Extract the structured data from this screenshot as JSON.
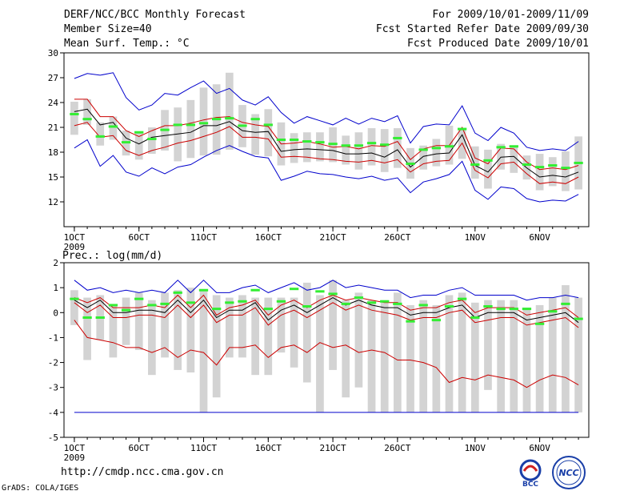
{
  "header": {
    "title": "DERF/NCC/BCC Monthly Forecast",
    "member_size": "Member Size=40",
    "variable": "Mean Surf. Temp.: °C",
    "forecast_period": "For 2009/10/01-2009/11/09",
    "refer_date": "Fcst Started Refer Date 2009/09/30",
    "produced_date": "Fcst Produced Date 2009/10/01"
  },
  "footer": {
    "url": "http://cmdp.ncc.cma.gov.cn",
    "grads": "GrADS: COLA/IGES",
    "logo_bcc": "BCC",
    "logo_ncc": "NCC"
  },
  "colors": {
    "mean": "#000000",
    "inner_band": "#cc0000",
    "outer_band": "#0000cc",
    "box": "#d3d3d3",
    "marker": "#33ee33"
  },
  "chart_data": [
    {
      "type": "line",
      "title": "Mean Surf. Temp.: °C",
      "ylim": [
        9,
        30
      ],
      "yticks": [
        12,
        15,
        18,
        21,
        24,
        27,
        30
      ],
      "x": [
        1,
        2,
        3,
        4,
        5,
        6,
        7,
        8,
        9,
        10,
        11,
        12,
        13,
        14,
        15,
        16,
        17,
        18,
        19,
        20,
        21,
        22,
        23,
        24,
        25,
        26,
        27,
        28,
        29,
        30,
        31,
        32,
        33,
        34,
        35,
        36,
        37,
        38,
        39,
        40
      ],
      "xticks": [
        {
          "day": 1,
          "label": "1OCT"
        },
        {
          "day": 6,
          "label": "6OCT"
        },
        {
          "day": 11,
          "label": "11OCT"
        },
        {
          "day": 16,
          "label": "16OCT"
        },
        {
          "day": 21,
          "label": "21OCT"
        },
        {
          "day": 26,
          "label": "26OCT"
        },
        {
          "day": 32,
          "label": "1NOV"
        },
        {
          "day": 37,
          "label": "6NOV"
        }
      ],
      "year_label": "2009",
      "series": [
        {
          "name": "max",
          "color": "#0000cc",
          "values": [
            26.9,
            27.5,
            27.3,
            27.6,
            24.6,
            23.1,
            23.7,
            25.1,
            24.9,
            25.8,
            26.6,
            25.1,
            25.7,
            24.3,
            23.7,
            24.7,
            22.8,
            21.5,
            22.3,
            21.8,
            21.3,
            22.1,
            21.4,
            22.1,
            21.7,
            22.4,
            19.1,
            21.1,
            21.4,
            21.3,
            23.6,
            20.3,
            19.4,
            21.0,
            20.3,
            18.6,
            18.2,
            18.4,
            18.2,
            19.3
          ]
        },
        {
          "name": "upper",
          "color": "#cc0000",
          "values": [
            24.4,
            24.4,
            22.3,
            22.3,
            20.6,
            19.9,
            20.6,
            21.2,
            21.2,
            21.5,
            21.9,
            22.2,
            22.3,
            21.6,
            21.3,
            21.1,
            19.0,
            19.1,
            19.3,
            19.0,
            18.6,
            18.7,
            18.4,
            18.8,
            18.7,
            19.3,
            17.1,
            18.4,
            18.8,
            18.8,
            21.0,
            17.3,
            16.6,
            18.5,
            18.4,
            16.8,
            15.9,
            16.1,
            15.9,
            16.4
          ]
        },
        {
          "name": "mean",
          "color": "#000000",
          "values": [
            22.9,
            23.2,
            21.3,
            21.6,
            19.7,
            19.0,
            19.8,
            20.0,
            20.2,
            20.4,
            21.2,
            21.2,
            21.7,
            20.6,
            20.4,
            20.5,
            18.1,
            18.3,
            18.4,
            18.3,
            18.2,
            17.8,
            17.8,
            17.9,
            17.4,
            18.3,
            16.2,
            17.5,
            17.8,
            17.9,
            20.1,
            16.4,
            15.6,
            17.4,
            17.5,
            16.1,
            15.0,
            15.2,
            15.0,
            15.6
          ]
        },
        {
          "name": "lower",
          "color": "#cc0000",
          "values": [
            21.2,
            21.6,
            19.8,
            20.0,
            18.2,
            17.6,
            18.2,
            18.6,
            19.1,
            19.4,
            19.9,
            20.4,
            21.1,
            19.8,
            19.8,
            19.6,
            17.4,
            17.5,
            17.4,
            17.2,
            17.1,
            16.9,
            16.8,
            17.0,
            16.7,
            17.1,
            15.6,
            16.6,
            16.9,
            17.0,
            19.1,
            15.8,
            14.9,
            16.6,
            16.8,
            15.4,
            14.2,
            14.4,
            14.2,
            15.0
          ]
        },
        {
          "name": "min",
          "color": "#0000cc",
          "values": [
            18.5,
            19.5,
            16.3,
            17.6,
            15.6,
            15.1,
            16.1,
            15.4,
            16.2,
            16.5,
            17.4,
            18.2,
            18.8,
            18.1,
            17.5,
            17.3,
            14.6,
            15.1,
            15.7,
            15.4,
            15.3,
            15.0,
            14.8,
            15.1,
            14.6,
            14.9,
            13.1,
            14.4,
            14.8,
            15.3,
            16.9,
            13.4,
            12.3,
            13.8,
            13.6,
            12.4,
            12.0,
            12.2,
            12.1,
            12.9
          ]
        }
      ],
      "boxes": {
        "low": [
          20.1,
          21.3,
          18.8,
          19.5,
          17.6,
          17.1,
          17.8,
          18.2,
          16.9,
          17.3,
          17.6,
          17.7,
          18.3,
          18.6,
          17.7,
          17.5,
          16.4,
          16.7,
          16.8,
          16.9,
          16.8,
          16.5,
          15.9,
          16.4,
          15.6,
          16.1,
          14.8,
          15.9,
          16.3,
          16.5,
          17.2,
          14.8,
          13.6,
          15.9,
          15.5,
          14.7,
          13.4,
          13.9,
          13.3,
          13.5
        ],
        "high": [
          24.1,
          24.4,
          21.6,
          22.3,
          20.6,
          20.4,
          21.0,
          23.1,
          23.4,
          24.3,
          25.8,
          26.2,
          27.6,
          23.7,
          22.6,
          23.2,
          21.6,
          20.3,
          20.4,
          20.4,
          21.0,
          20.0,
          20.4,
          20.9,
          20.8,
          20.9,
          18.5,
          18.8,
          19.6,
          21.2,
          20.9,
          18.7,
          18.3,
          19.0,
          18.8,
          17.6,
          17.8,
          17.4,
          18.1,
          19.9
        ]
      },
      "markers": [
        22.6,
        22.0,
        19.9,
        21.1,
        19.2,
        20.4,
        19.6,
        20.7,
        21.3,
        21.3,
        21.5,
        22.0,
        22.1,
        21.2,
        22.0,
        21.3,
        19.5,
        19.5,
        19.3,
        19.2,
        19.0,
        18.8,
        18.8,
        19.1,
        18.9,
        19.7,
        16.6,
        18.3,
        18.5,
        18.7,
        20.8,
        16.5,
        17.0,
        18.6,
        18.7,
        16.5,
        16.2,
        16.4,
        16.1,
        16.7
      ]
    },
    {
      "type": "line",
      "title": "Prec.: log(mm/d)",
      "ylim": [
        -5,
        2
      ],
      "yticks": [
        -5,
        -4,
        -3,
        -2,
        -1,
        0,
        1,
        2
      ],
      "x": [
        1,
        2,
        3,
        4,
        5,
        6,
        7,
        8,
        9,
        10,
        11,
        12,
        13,
        14,
        15,
        16,
        17,
        18,
        19,
        20,
        21,
        22,
        23,
        24,
        25,
        26,
        27,
        28,
        29,
        30,
        31,
        32,
        33,
        34,
        35,
        36,
        37,
        38,
        39,
        40
      ],
      "xticks": [
        {
          "day": 1,
          "label": "1OCT"
        },
        {
          "day": 6,
          "label": "6OCT"
        },
        {
          "day": 11,
          "label": "11OCT"
        },
        {
          "day": 16,
          "label": "16OCT"
        },
        {
          "day": 21,
          "label": "21OCT"
        },
        {
          "day": 26,
          "label": "26OCT"
        },
        {
          "day": 32,
          "label": "1NOV"
        },
        {
          "day": 37,
          "label": "6NOV"
        }
      ],
      "year_label": "2009",
      "series": [
        {
          "name": "max",
          "color": "#0000cc",
          "values": [
            1.3,
            0.9,
            1.0,
            0.8,
            0.9,
            0.8,
            0.9,
            0.8,
            1.3,
            0.8,
            1.3,
            0.8,
            0.8,
            1.0,
            1.1,
            0.8,
            1.0,
            1.2,
            0.9,
            1.0,
            1.3,
            1.0,
            1.1,
            1.0,
            0.9,
            0.9,
            0.6,
            0.7,
            0.7,
            0.9,
            1.0,
            0.7,
            0.7,
            0.7,
            0.7,
            0.5,
            0.6,
            0.6,
            0.7,
            0.6
          ]
        },
        {
          "name": "upper",
          "color": "#cc0000",
          "values": [
            0.6,
            0.4,
            0.6,
            0.2,
            0.2,
            0.2,
            0.3,
            0.2,
            0.7,
            0.2,
            0.7,
            -0.1,
            0.2,
            0.3,
            0.5,
            -0.1,
            0.3,
            0.5,
            0.2,
            0.5,
            0.7,
            0.5,
            0.6,
            0.5,
            0.4,
            0.4,
            0.1,
            0.2,
            0.2,
            0.4,
            0.5,
            0.0,
            0.2,
            0.2,
            0.2,
            -0.1,
            0.0,
            0.1,
            0.2,
            -0.2
          ]
        },
        {
          "name": "mean",
          "color": "#000000",
          "values": [
            0.5,
            0.2,
            0.5,
            0.0,
            0.0,
            0.1,
            0.1,
            0.0,
            0.5,
            0.0,
            0.5,
            -0.2,
            0.1,
            0.1,
            0.4,
            -0.3,
            0.1,
            0.3,
            0.0,
            0.3,
            0.6,
            0.3,
            0.5,
            0.3,
            0.2,
            0.2,
            -0.1,
            0.0,
            0.0,
            0.2,
            0.3,
            -0.2,
            0.0,
            0.0,
            0.0,
            -0.3,
            -0.2,
            -0.1,
            0.0,
            -0.4
          ]
        },
        {
          "name": "lower",
          "color": "#cc0000",
          "values": [
            0.4,
            0.0,
            0.3,
            -0.2,
            -0.2,
            -0.1,
            -0.1,
            -0.2,
            0.3,
            -0.2,
            0.3,
            -0.4,
            -0.1,
            -0.1,
            0.2,
            -0.5,
            -0.1,
            0.1,
            -0.2,
            0.1,
            0.4,
            0.1,
            0.3,
            0.1,
            0.0,
            -0.1,
            -0.3,
            -0.2,
            -0.2,
            0.0,
            0.1,
            -0.4,
            -0.3,
            -0.2,
            -0.2,
            -0.5,
            -0.4,
            -0.3,
            -0.2,
            -0.6
          ]
        },
        {
          "name": "min",
          "color": "#cc0000",
          "values": [
            -0.3,
            -1.0,
            -1.1,
            -1.2,
            -1.4,
            -1.4,
            -1.6,
            -1.4,
            -1.8,
            -1.5,
            -1.6,
            -2.1,
            -1.4,
            -1.4,
            -1.3,
            -1.8,
            -1.4,
            -1.3,
            -1.6,
            -1.2,
            -1.4,
            -1.3,
            -1.6,
            -1.5,
            -1.6,
            -1.9,
            -1.9,
            -2.0,
            -2.2,
            -2.8,
            -2.6,
            -2.7,
            -2.5,
            -2.6,
            -2.7,
            -3.0,
            -2.7,
            -2.5,
            -2.6,
            -2.9
          ]
        },
        {
          "name": "floor",
          "color": "#0000cc",
          "values": [
            -4,
            -4,
            -4,
            -4,
            -4,
            -4,
            -4,
            -4,
            -4,
            -4,
            -4,
            -4,
            -4,
            -4,
            -4,
            -4,
            -4,
            -4,
            -4,
            -4,
            -4,
            -4,
            -4,
            -4,
            -4,
            -4,
            -4,
            -4,
            -4,
            -4,
            -4,
            -4,
            -4,
            -4,
            -4,
            -4,
            -4,
            -4,
            -4,
            -4
          ]
        }
      ],
      "boxes": {
        "low": [
          -0.5,
          -1.9,
          -1.1,
          -1.8,
          -1.3,
          -1.5,
          -2.5,
          -1.8,
          -2.3,
          -2.4,
          -4.0,
          -3.4,
          -1.8,
          -1.8,
          -2.5,
          -2.5,
          -1.6,
          -2.2,
          -2.8,
          -4.0,
          -2.3,
          -3.4,
          -3.0,
          -4.0,
          -4.0,
          -4.0,
          -4.0,
          -4.0,
          -4.0,
          -4.0,
          -4.0,
          -4.0,
          -3.1,
          -4.0,
          -4.0,
          -4.0,
          -4.0,
          -4.0,
          -4.0,
          -4.0
        ],
        "high": [
          0.9,
          0.6,
          0.7,
          0.3,
          0.6,
          0.8,
          0.5,
          0.8,
          0.9,
          1.0,
          0.9,
          0.7,
          0.6,
          0.7,
          0.6,
          0.6,
          0.6,
          0.6,
          1.2,
          0.7,
          1.3,
          0.5,
          0.8,
          0.5,
          0.5,
          0.8,
          0.3,
          0.5,
          0.3,
          0.7,
          0.8,
          0.4,
          0.5,
          0.5,
          0.5,
          0.2,
          0.3,
          0.6,
          1.1,
          0.6
        ]
      },
      "markers": [
        0.55,
        -0.2,
        -0.2,
        0.3,
        0.1,
        0.55,
        0.3,
        0.35,
        0.8,
        0.4,
        0.9,
        0.15,
        0.4,
        0.45,
        0.9,
        0.15,
        0.45,
        0.95,
        0.25,
        0.85,
        0.75,
        0.35,
        0.6,
        0.4,
        0.45,
        0.35,
        -0.35,
        0.3,
        -0.3,
        0.25,
        0.55,
        -0.2,
        0.25,
        0.15,
        0.15,
        0.15,
        -0.45,
        0.05,
        0.35,
        -0.25
      ]
    }
  ]
}
